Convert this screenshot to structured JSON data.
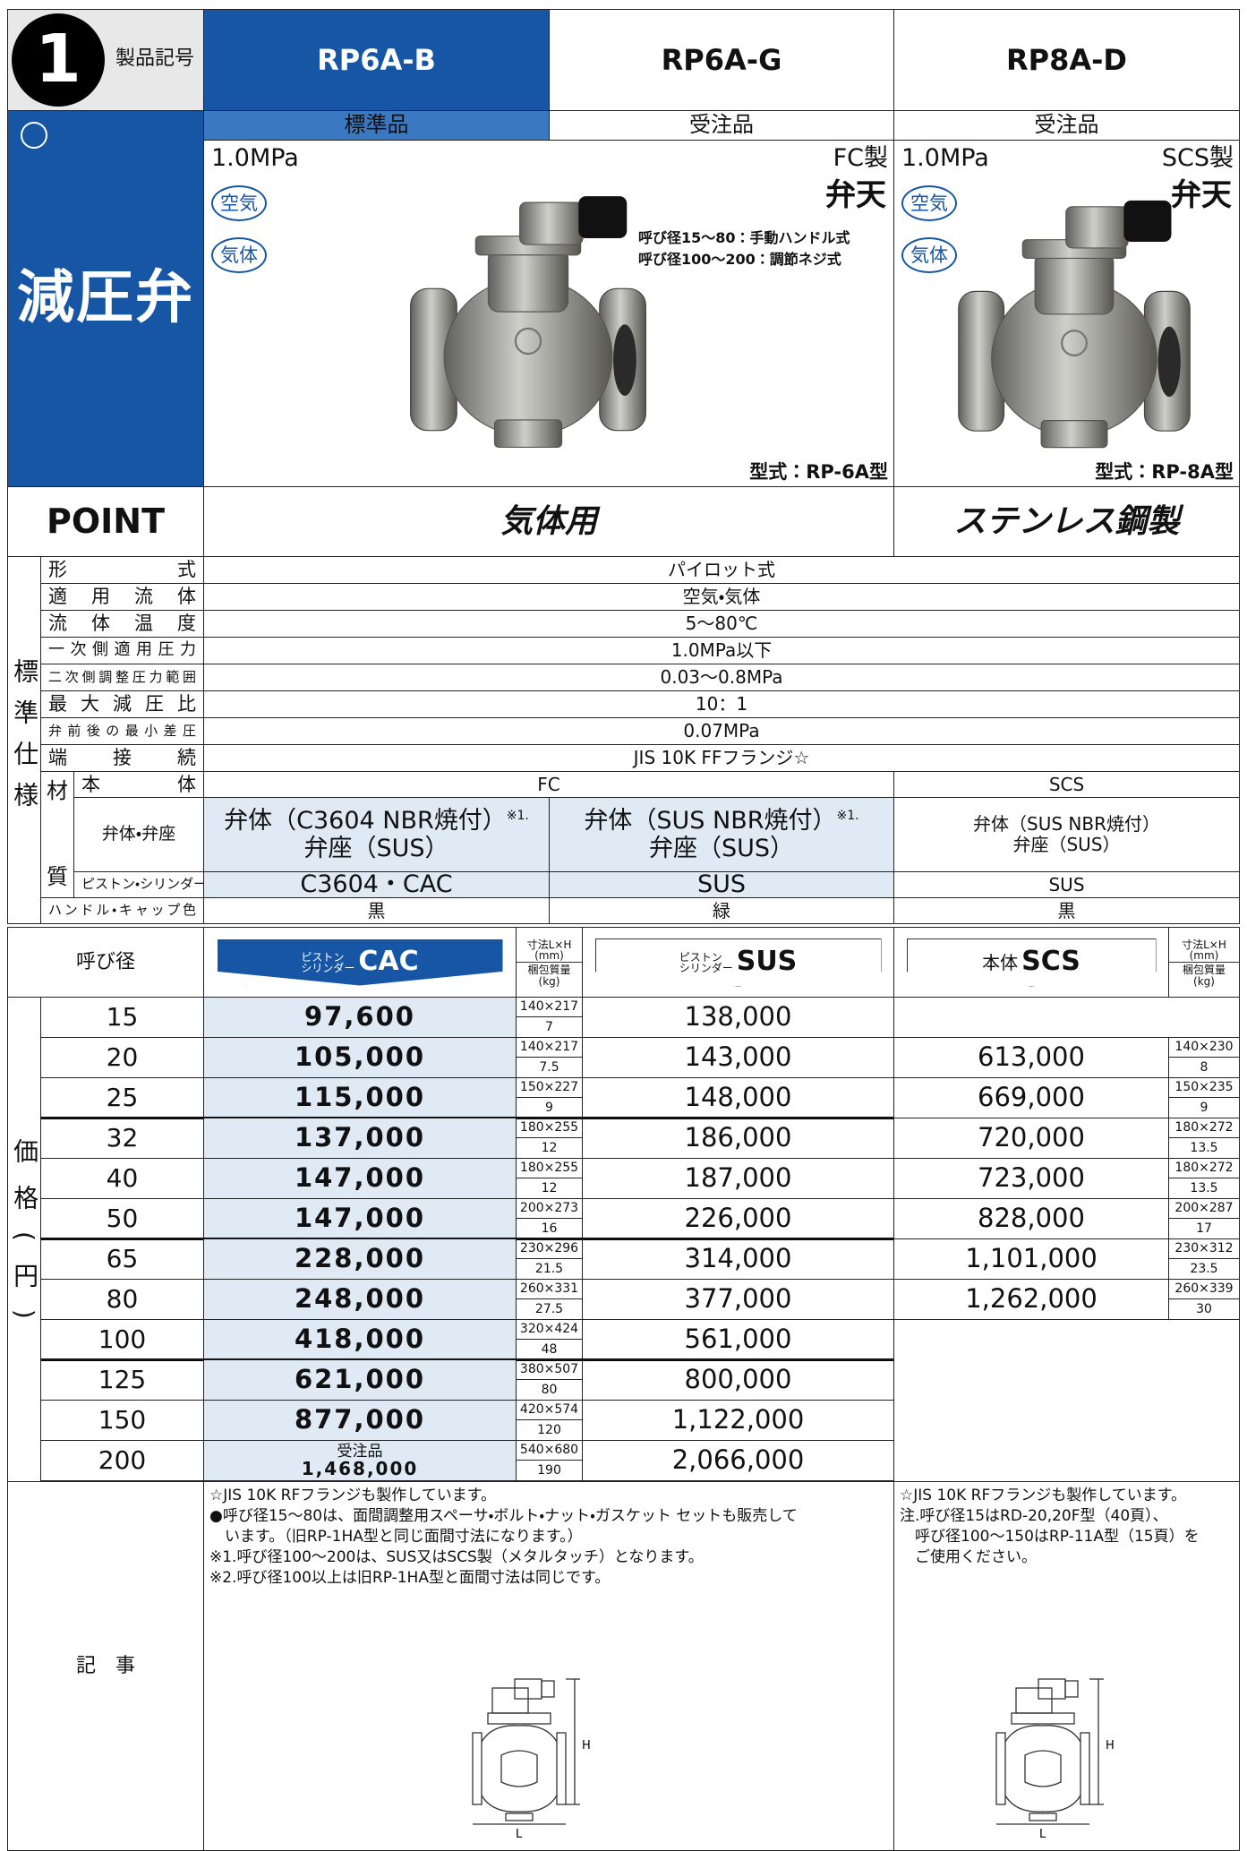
{
  "header": {
    "badge": "1",
    "label": "製品記号",
    "models": [
      "RP6A-B",
      "RP6A-G",
      "RP8A-D"
    ],
    "status": [
      "標準品",
      "受注品",
      "受注品"
    ]
  },
  "category": "減圧弁",
  "products": [
    {
      "pressure": "1.0MPa",
      "material": "FC製",
      "brand": "弁天",
      "media": [
        "空気",
        "気体"
      ],
      "notes": [
        "呼び径15～80：手動ハンドル式",
        "呼び径100～200：調節ネジ式"
      ],
      "model_type": "型式：RP-6A型"
    },
    {
      "pressure": "1.0MPa",
      "material": "SCS製",
      "brand": "弁天",
      "media": [
        "空気",
        "気体"
      ],
      "model_type": "型式：RP-8A型"
    }
  ],
  "point": {
    "label": "POINT",
    "common": "気体用",
    "stainless": "ステンレス鋼製"
  },
  "spec": {
    "side": "標準仕様",
    "rows": [
      [
        "形式",
        "パイロット式"
      ],
      [
        "適用流体",
        "空気・気体"
      ],
      [
        "流体温度",
        "5～80℃"
      ],
      [
        "一次側適用圧力",
        "1.0MPa以下"
      ],
      [
        "二次側調整圧力範囲",
        "0.03～0.8MPa"
      ],
      [
        "最大減圧比",
        "10：1"
      ],
      [
        "弁前後の最小差圧",
        "0.07MPa"
      ],
      [
        "端接続",
        "JIS 10K FFフランジ☆"
      ]
    ],
    "material_label": [
      "材",
      "質"
    ],
    "body": {
      "label": "本体",
      "values": [
        "FC",
        "SCS"
      ]
    },
    "disc": {
      "label": "弁体・弁座",
      "values": [
        {
          "disc": "弁体（C3604 NBR焼付）",
          "note": "※1.",
          "seat": "弁座（SUS）"
        },
        {
          "disc": "弁体（SUS NBR焼付）",
          "note": "※1.",
          "seat": "弁座（SUS）"
        },
        {
          "disc": "弁体（SUS NBR焼付）",
          "seat": "弁座（SUS）"
        }
      ]
    },
    "piston": {
      "label": "ピストン・シリンダー",
      "values": [
        "C3604・CAC",
        "SUS",
        "SUS"
      ]
    },
    "handle": {
      "label": "ハンドル・キャップ色",
      "values": [
        "黒",
        "緑",
        "黒"
      ]
    }
  },
  "prices": {
    "side": "価格(円)",
    "size_label": "呼び径",
    "columns": [
      {
        "prefix": [
          "ピストン",
          "シリンダー"
        ],
        "code": "CAC"
      },
      {
        "prefix": [
          "ピストン",
          "シリンダー"
        ],
        "code": "SUS"
      },
      {
        "prefix": [
          "本体"
        ],
        "code": "SCS"
      }
    ],
    "dims_header": {
      "dims": [
        "寸法L×H",
        "(mm)"
      ],
      "weight": [
        "梱包質量",
        "(kg)"
      ]
    },
    "rows": [
      {
        "size": 15,
        "cac": "97,600",
        "dims": "140×217",
        "weight": 7,
        "sus": "138,000"
      },
      {
        "size": 20,
        "cac": "105,000",
        "dims": "140×217",
        "weight": 7.5,
        "sus": "143,000",
        "scs": "613,000",
        "scs_dims": "140×230",
        "scs_weight": 8
      },
      {
        "size": 25,
        "cac": "115,000",
        "dims": "150×227",
        "weight": 9,
        "sus": "148,000",
        "scs": "669,000",
        "scs_dims": "150×235",
        "scs_weight": 9
      },
      {
        "size": 32,
        "cac": "137,000",
        "dims": "180×255",
        "weight": 12,
        "sus": "186,000",
        "scs": "720,000",
        "scs_dims": "180×272",
        "scs_weight": 13.5
      },
      {
        "size": 40,
        "cac": "147,000",
        "dims": "180×255",
        "weight": 12,
        "sus": "187,000",
        "scs": "723,000",
        "scs_dims": "180×272",
        "scs_weight": 13.5
      },
      {
        "size": 50,
        "cac": "147,000",
        "dims": "200×273",
        "weight": 16,
        "sus": "226,000",
        "scs": "828,000",
        "scs_dims": "200×287",
        "scs_weight": 17
      },
      {
        "size": 65,
        "cac": "228,000",
        "dims": "230×296",
        "weight": 21.5,
        "sus": "314,000",
        "scs": "1,101,000",
        "scs_dims": "230×312",
        "scs_weight": 23.5
      },
      {
        "size": 80,
        "cac": "248,000",
        "dims": "260×331",
        "weight": 27.5,
        "sus": "377,000",
        "scs": "1,262,000",
        "scs_dims": "260×339",
        "scs_weight": 30
      },
      {
        "size": 100,
        "cac": "418,000",
        "dims": "320×424",
        "weight": 48,
        "sus": "561,000"
      },
      {
        "size": 125,
        "cac": "621,000",
        "dims": "380×507",
        "weight": 80,
        "sus": "800,000"
      },
      {
        "size": 150,
        "cac": "877,000",
        "dims": "420×574",
        "weight": 120,
        "sus": "1,122,000"
      },
      {
        "size": 200,
        "cac_note": "受注品",
        "cac": "1,468,000",
        "dims": "540×680",
        "weight": 190,
        "sus": "2,066,000"
      }
    ]
  },
  "notes": {
    "label": "記　事",
    "left": [
      "☆JIS 10K RFフランジも製作しています。",
      "●呼び径15～80は、面間調整用スペーサ・ボルト・ナット・ガスケット セットも販売して",
      "　います。（旧RP-1HA型と同じ面間寸法になります。）",
      "※1.呼び径100～200は、SUS又はSCS製（メタルタッチ）となります。",
      "※2.呼び径100以上は旧RP-1HA型と面間寸法は同じです。"
    ],
    "right": [
      "☆JIS 10K RFフランジも製作しています。",
      "注.呼び径15はRD-20,20F型（40頁）、",
      "　呼び径100～150はRP-11A型（15頁）を",
      "　ご使用ください。"
    ]
  },
  "diagram": {
    "h": "H",
    "l": "L"
  }
}
